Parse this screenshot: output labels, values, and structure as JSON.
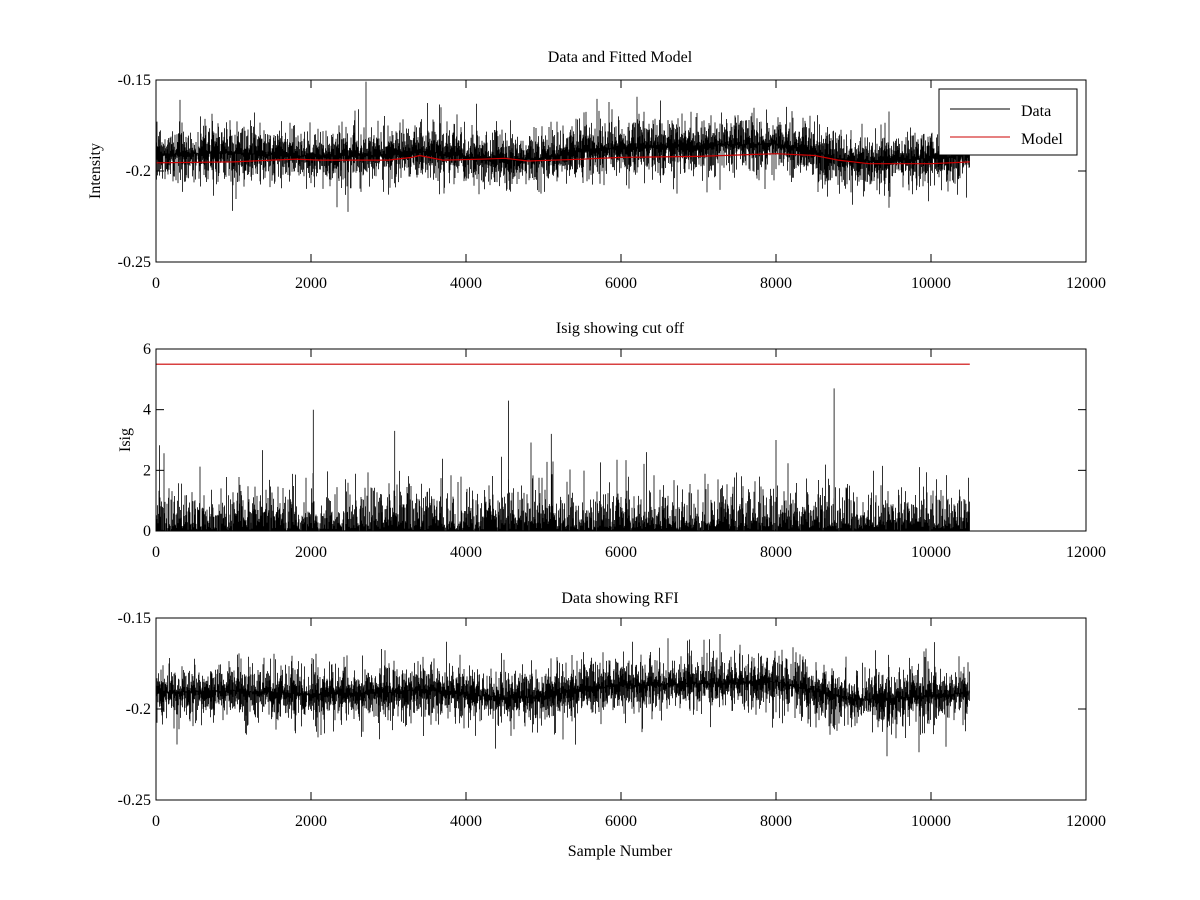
{
  "colors": {
    "data": "#000000",
    "model": "#cc0000"
  },
  "chart_data": [
    {
      "type": "line",
      "title": "Data and Fitted Model",
      "xlabel": "",
      "ylabel": "Intensity",
      "xlim": [
        0,
        12000
      ],
      "ylim": [
        -0.25,
        -0.15
      ],
      "y_reversed": true,
      "xticks": [
        0,
        2000,
        4000,
        6000,
        8000,
        10000,
        12000
      ],
      "xtick_labels": [
        "0",
        "2000",
        "4000",
        "6000",
        "8000",
        "10000",
        "12000"
      ],
      "yticks": [
        -0.15,
        -0.2,
        -0.25
      ],
      "ytick_labels": [
        "-0.15",
        "-0.2",
        "-0.25"
      ],
      "legend": {
        "position": "top-right",
        "entries": [
          "Data",
          "Model"
        ]
      },
      "series": [
        {
          "name": "Data",
          "kind": "noise-band",
          "x_range": [
            0,
            10500
          ],
          "color": "#000000",
          "center": [
            {
              "x": 0,
              "y": -0.191
            },
            {
              "x": 1000,
              "y": -0.19
            },
            {
              "x": 2000,
              "y": -0.192
            },
            {
              "x": 3000,
              "y": -0.191
            },
            {
              "x": 3400,
              "y": -0.189
            },
            {
              "x": 4000,
              "y": -0.192
            },
            {
              "x": 4500,
              "y": -0.194
            },
            {
              "x": 5000,
              "y": -0.193
            },
            {
              "x": 5500,
              "y": -0.189
            },
            {
              "x": 6000,
              "y": -0.187
            },
            {
              "x": 7000,
              "y": -0.186
            },
            {
              "x": 8000,
              "y": -0.185
            },
            {
              "x": 8500,
              "y": -0.19
            },
            {
              "x": 9000,
              "y": -0.195
            },
            {
              "x": 9500,
              "y": -0.194
            },
            {
              "x": 10000,
              "y": -0.193
            },
            {
              "x": 10500,
              "y": -0.191
            }
          ]
        },
        {
          "name": "Model",
          "kind": "line",
          "color": "#cc0000",
          "points": [
            {
              "x": 0,
              "y": -0.1955
            },
            {
              "x": 1000,
              "y": -0.195
            },
            {
              "x": 1500,
              "y": -0.194
            },
            {
              "x": 1800,
              "y": -0.1935
            },
            {
              "x": 2100,
              "y": -0.194
            },
            {
              "x": 3000,
              "y": -0.194
            },
            {
              "x": 3300,
              "y": -0.1925
            },
            {
              "x": 3400,
              "y": -0.1915
            },
            {
              "x": 3700,
              "y": -0.194
            },
            {
              "x": 4200,
              "y": -0.1935
            },
            {
              "x": 4500,
              "y": -0.193
            },
            {
              "x": 4800,
              "y": -0.1945
            },
            {
              "x": 5500,
              "y": -0.1935
            },
            {
              "x": 6000,
              "y": -0.1925
            },
            {
              "x": 7000,
              "y": -0.192
            },
            {
              "x": 8000,
              "y": -0.1905
            },
            {
              "x": 8500,
              "y": -0.1915
            },
            {
              "x": 8800,
              "y": -0.194
            },
            {
              "x": 9200,
              "y": -0.196
            },
            {
              "x": 10000,
              "y": -0.196
            },
            {
              "x": 10500,
              "y": -0.195
            }
          ]
        }
      ]
    },
    {
      "type": "line",
      "title": "Isig showing cut off",
      "xlabel": "",
      "ylabel": "Isig",
      "xlim": [
        0,
        12000
      ],
      "ylim": [
        0,
        6
      ],
      "y_reversed": false,
      "xticks": [
        0,
        2000,
        4000,
        6000,
        8000,
        10000,
        12000
      ],
      "xtick_labels": [
        "0",
        "2000",
        "4000",
        "6000",
        "8000",
        "10000",
        "12000"
      ],
      "yticks": [
        0,
        2,
        4,
        6
      ],
      "ytick_labels": [
        "0",
        "2",
        "4",
        "6"
      ],
      "series": [
        {
          "kind": "abs-noise",
          "x_range": [
            0,
            10500
          ],
          "color": "#000000",
          "peaks": [
            {
              "x": 2030,
              "y": 4.0
            },
            {
              "x": 3080,
              "y": 3.3
            },
            {
              "x": 4550,
              "y": 4.3
            },
            {
              "x": 5100,
              "y": 3.2
            },
            {
              "x": 8750,
              "y": 4.7
            },
            {
              "x": 8000,
              "y": 3.0
            }
          ]
        },
        {
          "kind": "line",
          "color": "#cc0000",
          "points": [
            {
              "x": 0,
              "y": 5.5
            },
            {
              "x": 10500,
              "y": 5.5
            }
          ]
        }
      ]
    },
    {
      "type": "line",
      "title": "Data showing RFI",
      "xlabel": "Sample Number",
      "ylabel": "",
      "xlim": [
        0,
        12000
      ],
      "ylim": [
        -0.25,
        -0.15
      ],
      "y_reversed": true,
      "xticks": [
        0,
        2000,
        4000,
        6000,
        8000,
        10000,
        12000
      ],
      "xtick_labels": [
        "0",
        "2000",
        "4000",
        "6000",
        "8000",
        "10000",
        "12000"
      ],
      "yticks": [
        -0.15,
        -0.2,
        -0.25
      ],
      "ytick_labels": [
        "-0.15",
        "-0.2",
        "-0.25"
      ],
      "series": [
        {
          "kind": "noise-band",
          "x_range": [
            0,
            10500
          ],
          "color": "#000000",
          "center": [
            {
              "x": 0,
              "y": -0.191
            },
            {
              "x": 1000,
              "y": -0.19
            },
            {
              "x": 2000,
              "y": -0.192
            },
            {
              "x": 3000,
              "y": -0.191
            },
            {
              "x": 3400,
              "y": -0.189
            },
            {
              "x": 4000,
              "y": -0.192
            },
            {
              "x": 4500,
              "y": -0.194
            },
            {
              "x": 5000,
              "y": -0.193
            },
            {
              "x": 5500,
              "y": -0.189
            },
            {
              "x": 6000,
              "y": -0.187
            },
            {
              "x": 7000,
              "y": -0.186
            },
            {
              "x": 8000,
              "y": -0.185
            },
            {
              "x": 8500,
              "y": -0.19
            },
            {
              "x": 9000,
              "y": -0.195
            },
            {
              "x": 9500,
              "y": -0.194
            },
            {
              "x": 10000,
              "y": -0.193
            },
            {
              "x": 10500,
              "y": -0.191
            }
          ]
        }
      ]
    }
  ]
}
